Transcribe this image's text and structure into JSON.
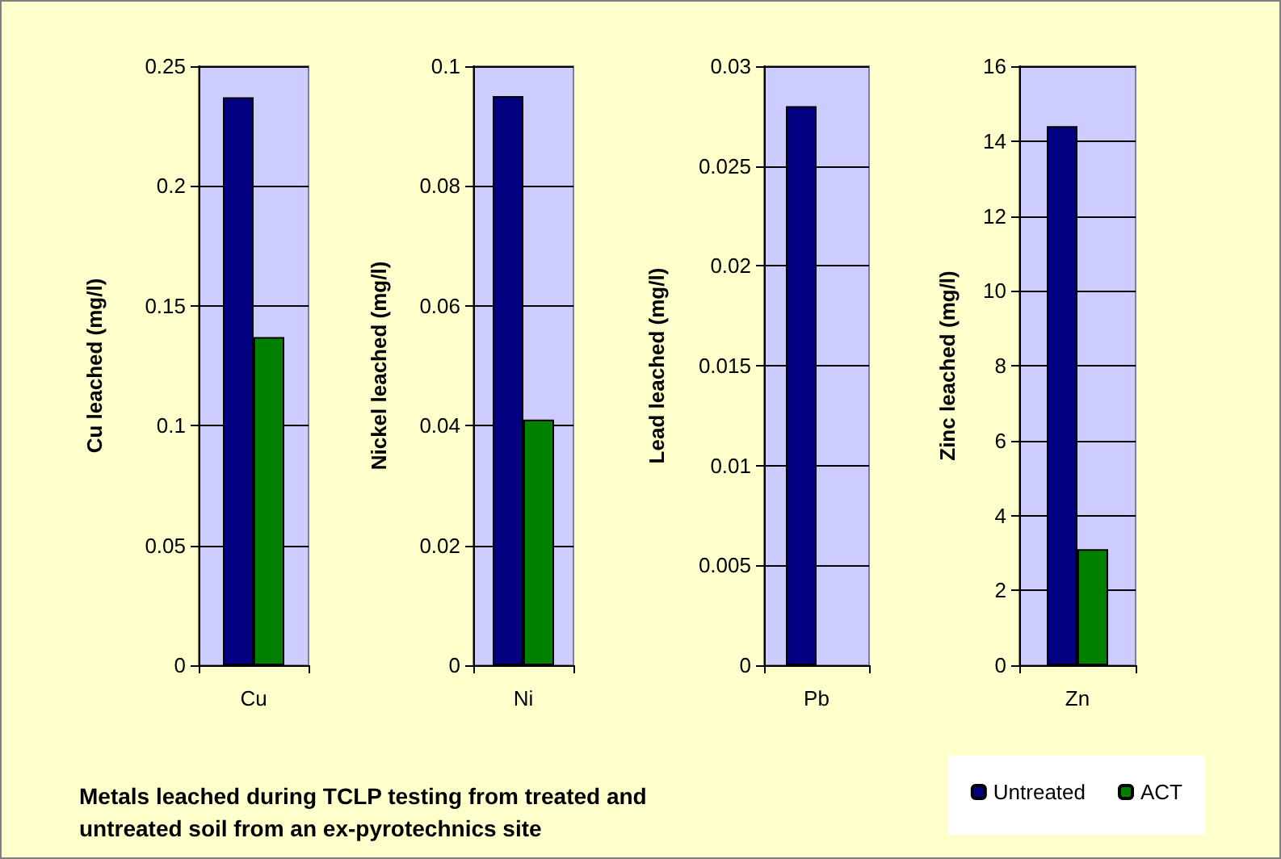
{
  "chart_data": [
    {
      "type": "bar",
      "title": "Metals leached during TCLP testing from treated and untreated soil from an ex-pyrotechnics site",
      "categories": [
        "Cu"
      ],
      "ylabel": "Cu leached (mg/l)",
      "ylim": [
        0,
        0.25
      ],
      "yticks": [
        0,
        0.05,
        0.1,
        0.15,
        0.2,
        0.25
      ],
      "grid": "y",
      "legend": "bottom right",
      "series": [
        {
          "name": "Untreated",
          "color": "#000080",
          "values": [
            0.237
          ]
        },
        {
          "name": "ACT",
          "color": "#008000",
          "values": [
            0.137
          ]
        }
      ]
    },
    {
      "type": "bar",
      "categories": [
        "Ni"
      ],
      "ylabel": "Nickel leached (mg/l)",
      "ylim": [
        0,
        0.1
      ],
      "yticks": [
        0,
        0.02,
        0.04,
        0.06,
        0.08,
        0.1
      ],
      "grid": "y",
      "series": [
        {
          "color": "#000080",
          "values": [
            0.095
          ]
        },
        {
          "color": "#008000",
          "values": [
            0.041
          ]
        }
      ]
    },
    {
      "type": "bar",
      "categories": [
        "Pb"
      ],
      "ylabel": "Lead leached (mg/l)",
      "ylim": [
        0,
        0.03
      ],
      "yticks": [
        0,
        0.005,
        0.01,
        0.015,
        0.02,
        0.025,
        0.03
      ],
      "grid": "y",
      "series": [
        {
          "color": "#000080",
          "values": [
            0.028
          ]
        },
        {
          "color": "#008000",
          "values": [
            null
          ]
        }
      ]
    },
    {
      "type": "bar",
      "categories": [
        "Zn"
      ],
      "ylabel": "Zinc leached (mg/l)",
      "ylim": [
        0,
        16
      ],
      "yticks": [
        0,
        2,
        4,
        6,
        8,
        10,
        12,
        14,
        16
      ],
      "grid": "y",
      "series": [
        {
          "color": "#000080",
          "values": [
            14.4
          ]
        },
        {
          "color": "#008000",
          "values": [
            3.1
          ]
        }
      ]
    }
  ]
}
